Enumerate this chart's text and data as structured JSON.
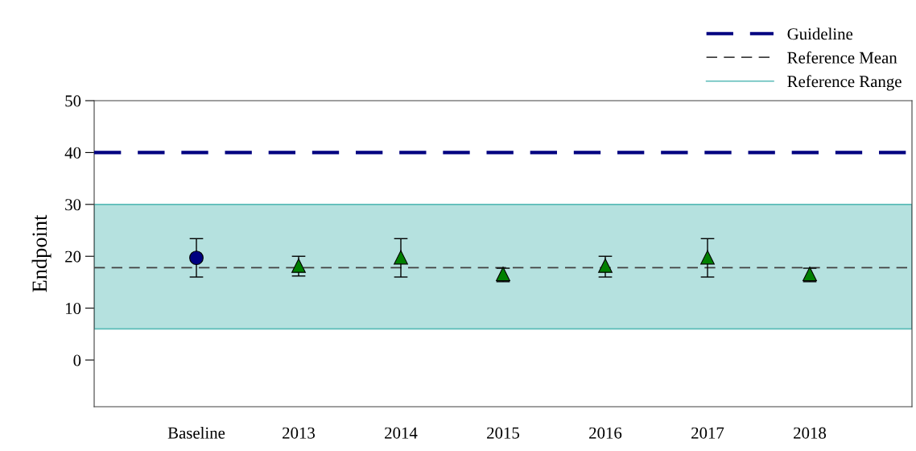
{
  "chart_data": {
    "type": "scatter",
    "ylabel": "Endpoint",
    "categories": [
      "Baseline",
      "2013",
      "2014",
      "2015",
      "2016",
      "2017",
      "2018"
    ],
    "series": [
      {
        "color": "#000080",
        "marker": "circle",
        "values": [
          19.7,
          null,
          null,
          null,
          null,
          null,
          null
        ],
        "errors": [
          [
            16.0,
            23.4
          ],
          null,
          null,
          null,
          null,
          null,
          null
        ]
      },
      {
        "color": "#008000",
        "marker": "triangle",
        "values": [
          null,
          18.2,
          19.8,
          16.6,
          18.2,
          19.8,
          16.6
        ],
        "errors": [
          null,
          [
            16.2,
            20.0
          ],
          [
            16.0,
            23.4
          ],
          [
            15.1,
            17.7
          ],
          [
            16.0,
            20.0
          ],
          [
            16.0,
            23.4
          ],
          [
            15.1,
            17.7
          ]
        ]
      }
    ],
    "ylim": [
      -9,
      50
    ],
    "yticks": [
      0,
      10,
      20,
      30,
      40,
      50
    ],
    "ref_lines": [
      {
        "axis": "y",
        "value": 40,
        "label": "Guideline",
        "color": "#000080",
        "line_style": "dashed"
      },
      {
        "axis": "y",
        "value": 17.8,
        "label": "Reference Mean",
        "color": "#404040",
        "line_style": "dashed"
      }
    ],
    "bands": [
      {
        "axis": "y",
        "from": 6,
        "to": 30,
        "label": "Reference Range",
        "color": "#5bbcb8"
      }
    ],
    "legend": "top right",
    "grid": false
  }
}
